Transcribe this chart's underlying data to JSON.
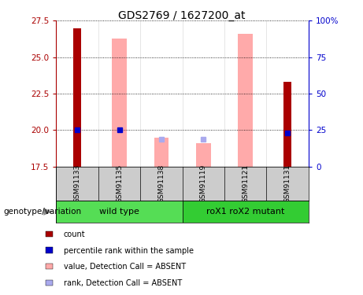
{
  "title": "GDS2769 / 1627200_at",
  "samples": [
    "GSM91133",
    "GSM91135",
    "GSM91138",
    "GSM91119",
    "GSM91121",
    "GSM91131"
  ],
  "ylim_left": [
    17.5,
    27.5
  ],
  "ylim_right": [
    0,
    100
  ],
  "yticks_left": [
    17.5,
    20.0,
    22.5,
    25.0,
    27.5
  ],
  "yticks_right": [
    0,
    25,
    50,
    75,
    100
  ],
  "ytick_labels_right": [
    "0",
    "25",
    "50",
    "75",
    "100%"
  ],
  "red_bars": {
    "GSM91133": 27.0,
    "GSM91131": 23.3
  },
  "pink_bars": {
    "GSM91135": 26.3,
    "GSM91138": 19.5,
    "GSM91119": 19.1,
    "GSM91121": 26.6
  },
  "blue_squares": {
    "GSM91133": 20.0,
    "GSM91135": 20.0,
    "GSM91131": 19.8
  },
  "light_blue_squares": {
    "GSM91138": 19.4,
    "GSM91119": 19.4
  },
  "groups": [
    {
      "label": "wild type",
      "samples": [
        "GSM91133",
        "GSM91135",
        "GSM91138"
      ],
      "color": "#55dd55"
    },
    {
      "label": "roX1 roX2 mutant",
      "samples": [
        "GSM91119",
        "GSM91121",
        "GSM91131"
      ],
      "color": "#33cc33"
    }
  ],
  "red_bar_width": 0.18,
  "pink_bar_width": 0.35,
  "red_color": "#aa0000",
  "pink_color": "#ffaaaa",
  "blue_color": "#0000cc",
  "light_blue_color": "#aaaaee",
  "legend_items": [
    {
      "label": "count",
      "color": "#aa0000"
    },
    {
      "label": "percentile rank within the sample",
      "color": "#0000cc"
    },
    {
      "label": "value, Detection Call = ABSENT",
      "color": "#ffaaaa"
    },
    {
      "label": "rank, Detection Call = ABSENT",
      "color": "#aaaaee"
    }
  ]
}
